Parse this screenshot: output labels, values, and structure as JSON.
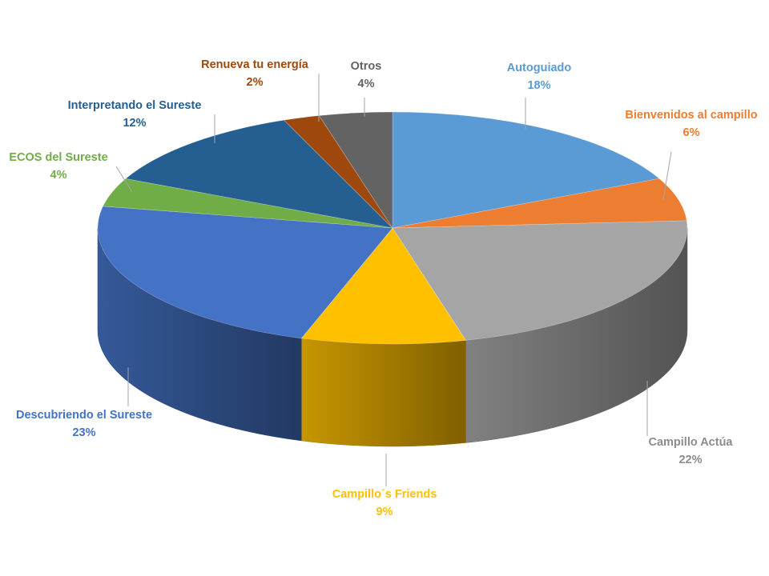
{
  "chart_data": {
    "type": "pie",
    "style": "3d",
    "legend": "none",
    "slices": [
      {
        "name": "Autoguiado",
        "value": 18,
        "label": "18%",
        "color": "#5B9BD5"
      },
      {
        "name": "Bienvenidos al campillo",
        "value": 6,
        "label": "6%",
        "color": "#ED7D31"
      },
      {
        "name": "Campillo Actúa",
        "value": 22,
        "label": "22%",
        "color": "#A5A5A5"
      },
      {
        "name": "Campillo´s Friends",
        "value": 9,
        "label": "9%",
        "color": "#FFC000"
      },
      {
        "name": "Descubriendo el Sureste",
        "value": 23,
        "label": "23%",
        "color": "#4472C4"
      },
      {
        "name": "ECOS  del Sureste",
        "value": 4,
        "label": "4%",
        "color": "#70AD47"
      },
      {
        "name": "Interpretando el Sureste",
        "value": 12,
        "label": "12%",
        "color": "#255E91"
      },
      {
        "name": "Renueva tu energía",
        "value": 2,
        "label": "2%",
        "color": "#9E480E"
      },
      {
        "name": "Otros",
        "value": 4,
        "label": "4%",
        "color": "#636363"
      }
    ]
  }
}
